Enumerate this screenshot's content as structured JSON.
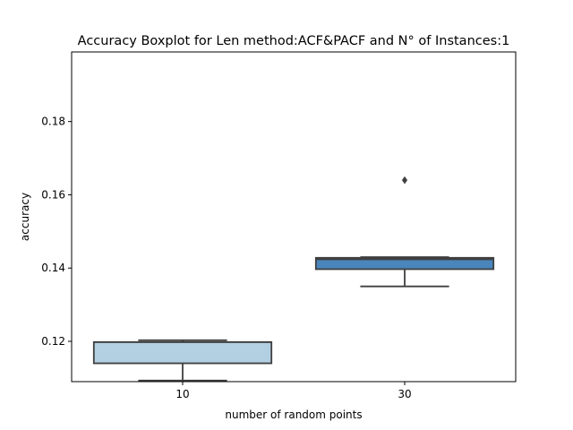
{
  "chart_data": {
    "type": "boxplot",
    "title": "Accuracy Boxplot for Len method:ACF&PACF and N° of Instances:1",
    "xlabel": "number of random points",
    "ylabel": "accuracy",
    "categories": [
      "10",
      "30"
    ],
    "ylim": [
      0.109,
      0.199
    ],
    "yticks": [
      0.12,
      0.14,
      0.16,
      0.18
    ],
    "ytick_labels": [
      "0.12",
      "0.14",
      "0.16",
      "0.18"
    ],
    "grid": false,
    "legend": "none",
    "boxes": [
      {
        "category": "10",
        "whisker_low": 0.1093,
        "q1": 0.114,
        "median": 0.1198,
        "q3": 0.1198,
        "whisker_high": 0.1203,
        "outliers": [],
        "color": "#b3cfe2"
      },
      {
        "category": "30",
        "whisker_low": 0.135,
        "q1": 0.1397,
        "median": 0.1424,
        "q3": 0.1428,
        "whisker_high": 0.143,
        "outliers": [
          0.164
        ],
        "color": "#4a86bb"
      }
    ],
    "line_color": "#3f3f3f"
  }
}
